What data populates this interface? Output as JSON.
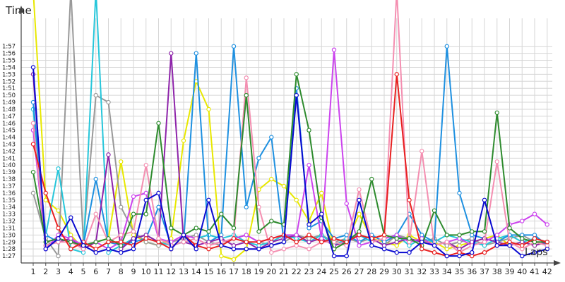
{
  "chart_data": {
    "type": "line",
    "title": "",
    "xlabel": "Laps",
    "ylabel": "Time",
    "xlim": [
      1,
      42
    ],
    "ylim": [
      86,
      120
    ],
    "grid": true,
    "legend": "none",
    "x": [
      1,
      2,
      3,
      4,
      5,
      6,
      7,
      8,
      9,
      10,
      11,
      12,
      13,
      14,
      15,
      16,
      17,
      18,
      19,
      20,
      21,
      22,
      23,
      24,
      25,
      26,
      27,
      28,
      29,
      30,
      31,
      32,
      33,
      34,
      35,
      36,
      37,
      38,
      39,
      40,
      41,
      42
    ],
    "x_tick_labels": [
      "1",
      "2",
      "3",
      "4",
      "5",
      "6",
      "7",
      "8",
      "9",
      "10",
      "11",
      "12",
      "13",
      "14",
      "15",
      "16",
      "17",
      "18",
      "19",
      "20",
      "21",
      "22",
      "23",
      "24",
      "25",
      "26",
      "27",
      "28",
      "29",
      "30",
      "31",
      "32",
      "33",
      "34",
      "35",
      "36",
      "37",
      "38",
      "39",
      "40",
      "41",
      "42"
    ],
    "y_tick_values": [
      87,
      88,
      89,
      90,
      91,
      92,
      93,
      94,
      95,
      96,
      97,
      98,
      99,
      100,
      101,
      102,
      103,
      104,
      105,
      106,
      107,
      108,
      109,
      110,
      111,
      112,
      113,
      114,
      115,
      116,
      117
    ],
    "y_tick_labels": [
      "1:27",
      "1:28",
      "1:29",
      "1:30",
      "1:31",
      "1:32",
      "1:33",
      "1:34",
      "1:35",
      "1:36",
      "1:37",
      "1:38",
      "1:39",
      "1:40",
      "1:41",
      "1:42",
      "1:43",
      "1:44",
      "1:45",
      "1:46",
      "1:47",
      "1:48",
      "1:49",
      "1:50",
      "1:51",
      "1:52",
      "1:53",
      "1:54",
      "1:55",
      "1:56",
      "1:57"
    ],
    "series": [
      {
        "color": "#e8e800",
        "values": [
          125,
          95,
          93.5,
          90,
          88,
          89,
          89.5,
          100.5,
          90,
          89,
          88.5,
          89.5,
          103.5,
          112,
          108,
          87,
          86.5,
          88,
          96.5,
          98,
          97,
          95,
          92,
          96,
          88,
          89,
          93,
          89.5,
          89,
          88.5,
          90,
          89,
          89,
          88,
          88.5,
          89,
          89.5,
          90,
          88.5,
          89,
          88.5,
          89
        ]
      },
      {
        "color": "#999999",
        "values": [
          96,
          89.5,
          87,
          125,
          89,
          110,
          109,
          94,
          90.5,
          89,
          88.5,
          89,
          89.5,
          90,
          89,
          88.5,
          89.5,
          90,
          89,
          88.5,
          89,
          90,
          89.5,
          90,
          89,
          89.5,
          89,
          89.5,
          88.5,
          90,
          89.5,
          89,
          89.5,
          88.5,
          89,
          89.5,
          88.5,
          89,
          89.5,
          90,
          89,
          88.5
        ]
      },
      {
        "color": "#26c6da",
        "values": [
          108,
          90,
          99.5,
          88,
          87.5,
          125,
          87.5,
          88.5,
          89.5,
          90,
          89,
          88.5,
          89,
          89.5,
          90,
          89.5,
          90,
          89,
          88.5,
          89,
          90,
          89.5,
          89,
          90,
          88.5,
          89.5,
          90,
          89,
          89.5,
          90,
          88.5,
          89.5,
          89,
          90,
          89.5,
          89,
          88.5,
          89.5,
          90,
          89,
          89.5,
          89
        ]
      },
      {
        "color": "#1e90e0",
        "values": [
          109,
          90,
          89,
          89.5,
          88.5,
          98,
          89,
          88.5,
          89,
          89.5,
          94,
          88.5,
          89,
          116,
          89,
          90,
          117,
          94,
          101,
          104,
          89,
          111,
          91,
          92,
          89.5,
          90,
          89,
          90,
          89,
          90,
          93,
          90,
          89,
          117,
          96,
          90,
          89.5,
          89,
          90,
          90,
          90,
          88.5
        ]
      },
      {
        "color": "#8e24aa",
        "values": [
          113,
          88.5,
          89,
          89.5,
          88,
          89,
          101.5,
          88,
          89.5,
          90,
          89,
          116,
          89,
          88.5,
          89,
          89.5,
          88.5,
          89,
          88,
          89,
          89.5,
          90,
          89,
          89.5,
          88.5,
          89,
          90,
          89.5,
          88.5,
          89,
          89.5,
          89,
          88.5,
          89,
          88,
          89,
          89.5,
          89,
          88.5,
          89,
          88.5,
          89
        ]
      },
      {
        "color": "#cc44ee",
        "values": [
          105,
          88,
          90,
          89.5,
          88.5,
          89,
          88,
          89,
          95.5,
          96,
          89.5,
          89,
          90,
          89.5,
          88.5,
          89,
          89.5,
          90,
          89,
          89.5,
          90,
          90,
          100,
          89.5,
          116.5,
          94.5,
          88.5,
          89,
          89.5,
          90,
          89,
          89.5,
          88.5,
          89,
          89.5,
          88.5,
          89,
          90,
          91.5,
          92,
          93,
          91.5
        ]
      },
      {
        "color": "#f48fb1",
        "values": [
          106,
          88.5,
          89,
          89,
          88,
          93,
          89,
          90,
          90.5,
          100,
          89.5,
          88.5,
          89,
          89.5,
          88.5,
          89,
          89.5,
          112.5,
          94,
          87.5,
          88,
          88.5,
          88,
          89,
          89,
          88.5,
          96.5,
          89,
          89.5,
          125,
          89,
          102,
          88.5,
          89,
          87.5,
          88.5,
          89,
          100.5,
          89,
          88,
          89,
          88.5
        ]
      },
      {
        "color": "#2e8b2e",
        "values": [
          99,
          89,
          89.5,
          89,
          88.5,
          89,
          89.5,
          88.5,
          93,
          93,
          106,
          91,
          90,
          91,
          90.5,
          93,
          91,
          110,
          90.5,
          92,
          91.5,
          113,
          105,
          92.5,
          88,
          89,
          90.5,
          98,
          90,
          89.5,
          89.5,
          88.5,
          93.5,
          90,
          90,
          90.5,
          90.5,
          107.5,
          91,
          89.5,
          89,
          89
        ]
      },
      {
        "color": "#e82020",
        "values": [
          103,
          96,
          91,
          88,
          89,
          88,
          89,
          89,
          88.5,
          89.5,
          89,
          88,
          90,
          88.5,
          88,
          88.5,
          89.5,
          89,
          89,
          89.5,
          90,
          89,
          90,
          89,
          89.5,
          89,
          90,
          89.5,
          90,
          113,
          95,
          88,
          87.5,
          87,
          87.5,
          87,
          87.5,
          88.5,
          89,
          88.5,
          89.5,
          89
        ]
      },
      {
        "color": "#0a0ad0",
        "values": [
          114,
          88,
          89.5,
          92.5,
          88.5,
          87.5,
          88,
          87.5,
          88,
          95,
          96,
          88,
          90,
          88,
          95,
          88.5,
          88,
          88,
          88,
          88.5,
          89,
          110,
          91.5,
          93,
          87,
          87,
          95,
          88.5,
          88,
          87.5,
          87.5,
          89,
          88.5,
          87,
          87,
          87.5,
          95,
          88.5,
          88.5,
          87,
          87.5,
          88
        ]
      }
    ]
  }
}
